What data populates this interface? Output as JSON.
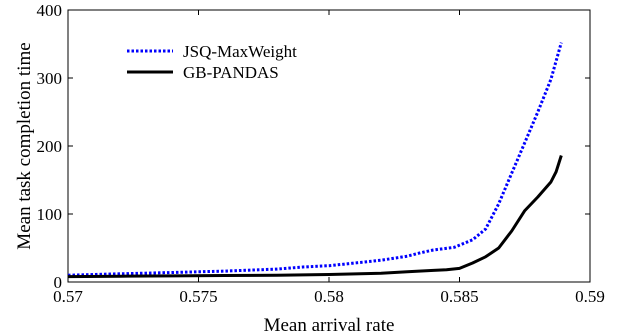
{
  "chart_data": {
    "type": "line",
    "title": "",
    "xlabel": "Mean arrival rate",
    "ylabel": "Mean task completion time",
    "xlim": [
      0.57,
      0.59
    ],
    "ylim": [
      0,
      400
    ],
    "x_ticks": [
      "0.57",
      "0.575",
      "0.58",
      "0.585",
      "0.59"
    ],
    "y_ticks": [
      "0",
      "100",
      "200",
      "300",
      "400"
    ],
    "x_tick_values": [
      0.57,
      0.575,
      0.58,
      0.585,
      0.59
    ],
    "y_tick_values": [
      0,
      100,
      200,
      300,
      400
    ],
    "grid": false,
    "legend_position": "top-left",
    "series": [
      {
        "name": "JSQ-MaxWeight",
        "color": "#0000ff",
        "line_style": "dotted",
        "points": [
          [
            0.57,
            10
          ],
          [
            0.572,
            12
          ],
          [
            0.574,
            14
          ],
          [
            0.576,
            16
          ],
          [
            0.578,
            19
          ],
          [
            0.579,
            22
          ],
          [
            0.58,
            24
          ],
          [
            0.581,
            28
          ],
          [
            0.582,
            32
          ],
          [
            0.583,
            38
          ],
          [
            0.5835,
            43
          ],
          [
            0.584,
            47
          ],
          [
            0.5848,
            51
          ],
          [
            0.5855,
            62
          ],
          [
            0.586,
            78
          ],
          [
            0.5865,
            115
          ],
          [
            0.587,
            160
          ],
          [
            0.5875,
            205
          ],
          [
            0.588,
            250
          ],
          [
            0.5885,
            298
          ],
          [
            0.5889,
            352
          ]
        ]
      },
      {
        "name": "GB-PANDAS",
        "color": "#000000",
        "line_style": "solid",
        "points": [
          [
            0.57,
            8
          ],
          [
            0.572,
            8.5
          ],
          [
            0.574,
            9
          ],
          [
            0.576,
            9.5
          ],
          [
            0.578,
            10
          ],
          [
            0.58,
            11
          ],
          [
            0.582,
            13
          ],
          [
            0.583,
            15
          ],
          [
            0.584,
            17
          ],
          [
            0.5845,
            18
          ],
          [
            0.585,
            20
          ],
          [
            0.5855,
            28
          ],
          [
            0.586,
            37
          ],
          [
            0.5865,
            50
          ],
          [
            0.587,
            75
          ],
          [
            0.5875,
            105
          ],
          [
            0.588,
            125
          ],
          [
            0.5885,
            147
          ],
          [
            0.5887,
            162
          ],
          [
            0.5889,
            186
          ]
        ]
      }
    ]
  }
}
